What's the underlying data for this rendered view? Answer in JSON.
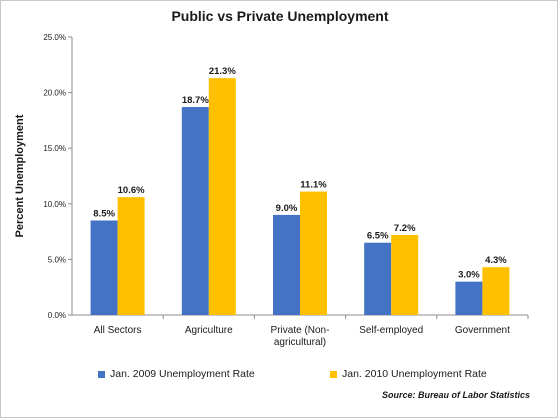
{
  "chart_data": {
    "type": "bar",
    "title": "Public vs Private Unemployment",
    "ylabel": "Percent Unemployment",
    "xlabel": "",
    "ylim": [
      0,
      25
    ],
    "yticks": [
      "0.0%",
      "5.0%",
      "10.0%",
      "15.0%",
      "20.0%",
      "25.0%"
    ],
    "categories": [
      [
        "All Sectors"
      ],
      [
        "Agriculture"
      ],
      [
        "Private (Non-",
        "agricultural)"
      ],
      [
        "Self-employed"
      ],
      [
        "Government"
      ]
    ],
    "series": [
      {
        "name": "Jan. 2009 Unemployment Rate",
        "color": "#4472C4",
        "values": [
          8.5,
          18.7,
          9.0,
          6.5,
          3.0
        ],
        "labels": [
          "8.5%",
          "18.7%",
          "9.0%",
          "6.5%",
          "3.0%"
        ]
      },
      {
        "name": "Jan. 2010 Unemployment Rate",
        "color": "#FFC000",
        "values": [
          10.6,
          21.3,
          11.1,
          7.2,
          4.3
        ],
        "labels": [
          "10.6%",
          "21.3%",
          "11.1%",
          "7.2%",
          "4.3%"
        ]
      }
    ],
    "grid": false,
    "legend_position": "bottom",
    "source": "Source: Bureau of Labor Statistics"
  }
}
